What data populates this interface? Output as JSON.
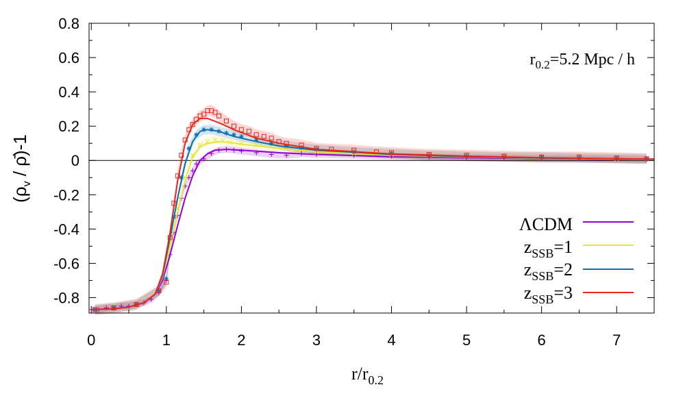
{
  "chart_data": {
    "type": "line",
    "xlabel": {
      "main": "r/r",
      "sub": "0.2"
    },
    "ylabel": {
      "pre": "(ρ",
      "sub": "v",
      "mid": " / ",
      "rhobar": "ρ̄",
      "post": ")-1"
    },
    "annotation": {
      "pre": "r",
      "sub": "0.2",
      "post": "=5.2 Mpc / h"
    },
    "xlim": [
      -0.03,
      7.5
    ],
    "ylim": [
      -0.89,
      0.8
    ],
    "x_ticks": [
      0,
      1,
      2,
      3,
      4,
      5,
      6,
      7
    ],
    "y_ticks": [
      0.8,
      0.6,
      0.4,
      0.2,
      0,
      -0.2,
      -0.4,
      -0.6,
      -0.8
    ],
    "zero_line": true,
    "legend_position": "bottom-right",
    "series": [
      {
        "name": "ΛCDM",
        "legend_label": {
          "main": "ΛCDM",
          "sub": "",
          "post": ""
        },
        "color": "#9400d3",
        "marker": "plus",
        "peak": {
          "r": 1.8,
          "value": 0.07
        },
        "curve": [
          [
            0,
            -0.87
          ],
          [
            0.3,
            -0.865
          ],
          [
            0.5,
            -0.855
          ],
          [
            0.7,
            -0.83
          ],
          [
            0.85,
            -0.78
          ],
          [
            0.95,
            -0.7
          ],
          [
            1.05,
            -0.55
          ],
          [
            1.15,
            -0.38
          ],
          [
            1.25,
            -0.22
          ],
          [
            1.35,
            -0.09
          ],
          [
            1.45,
            0
          ],
          [
            1.55,
            0.04
          ],
          [
            1.65,
            0.06
          ],
          [
            1.8,
            0.065
          ],
          [
            2.0,
            0.06
          ],
          [
            2.5,
            0.045
          ],
          [
            3.0,
            0.035
          ],
          [
            4.0,
            0.022
          ],
          [
            5.0,
            0.015
          ],
          [
            6.0,
            0.01
          ],
          [
            7.0,
            0.006
          ],
          [
            7.5,
            0.005
          ]
        ],
        "points": [
          [
            0,
            -0.87
          ],
          [
            0.1,
            -0.87
          ],
          [
            0.2,
            -0.86
          ],
          [
            0.3,
            -0.86
          ],
          [
            0.4,
            -0.85
          ],
          [
            0.5,
            -0.85
          ],
          [
            0.6,
            -0.84
          ],
          [
            0.7,
            -0.83
          ],
          [
            0.8,
            -0.81
          ],
          [
            0.9,
            -0.77
          ],
          [
            1.0,
            -0.7
          ],
          [
            1.05,
            -0.55
          ],
          [
            1.1,
            -0.42
          ],
          [
            1.15,
            -0.32
          ],
          [
            1.2,
            -0.22
          ],
          [
            1.25,
            -0.15
          ],
          [
            1.3,
            -0.1
          ],
          [
            1.35,
            -0.06
          ],
          [
            1.4,
            -0.02
          ],
          [
            1.5,
            0.01
          ],
          [
            1.6,
            0.04
          ],
          [
            1.7,
            0.06
          ],
          [
            1.8,
            0.065
          ],
          [
            1.9,
            0.06
          ],
          [
            2.0,
            0.055
          ],
          [
            2.2,
            0.045
          ],
          [
            2.4,
            0.035
          ],
          [
            2.6,
            0.03
          ],
          [
            2.8,
            0.04
          ],
          [
            3.0,
            0.035
          ],
          [
            3.5,
            0.03
          ],
          [
            4.0,
            0.025
          ],
          [
            4.5,
            0.02
          ],
          [
            5.0,
            0.015
          ],
          [
            5.5,
            0.015
          ],
          [
            6.0,
            0.01
          ],
          [
            6.5,
            0.01
          ],
          [
            7.0,
            0.008
          ],
          [
            7.4,
            0.005
          ]
        ]
      },
      {
        "name": "zSSB=1",
        "legend_label": {
          "main": "z",
          "sub": "SSB",
          "post": "=1"
        },
        "color": "#e6e63c",
        "marker": "x",
        "peak": {
          "r": 1.7,
          "value": 0.11
        },
        "curve": [
          [
            0,
            -0.87
          ],
          [
            0.3,
            -0.865
          ],
          [
            0.5,
            -0.855
          ],
          [
            0.7,
            -0.83
          ],
          [
            0.85,
            -0.78
          ],
          [
            0.95,
            -0.68
          ],
          [
            1.05,
            -0.5
          ],
          [
            1.15,
            -0.3
          ],
          [
            1.25,
            -0.12
          ],
          [
            1.35,
            0.02
          ],
          [
            1.45,
            0.08
          ],
          [
            1.55,
            0.1
          ],
          [
            1.7,
            0.11
          ],
          [
            1.85,
            0.105
          ],
          [
            2.0,
            0.095
          ],
          [
            2.5,
            0.07
          ],
          [
            3.0,
            0.05
          ],
          [
            4.0,
            0.03
          ],
          [
            5.0,
            0.02
          ],
          [
            6.0,
            0.012
          ],
          [
            7.0,
            0.008
          ],
          [
            7.5,
            0.006
          ]
        ],
        "points": [
          [
            0.05,
            -0.87
          ],
          [
            0.3,
            -0.86
          ],
          [
            0.6,
            -0.84
          ],
          [
            0.9,
            -0.76
          ],
          [
            1.05,
            -0.48
          ],
          [
            1.15,
            -0.28
          ],
          [
            1.25,
            -0.1
          ],
          [
            1.35,
            0.03
          ],
          [
            1.45,
            0.09
          ],
          [
            1.55,
            0.11
          ],
          [
            1.65,
            0.12
          ],
          [
            1.75,
            0.115
          ],
          [
            1.85,
            0.105
          ],
          [
            2.0,
            0.1
          ],
          [
            2.2,
            0.09
          ],
          [
            2.4,
            0.08
          ],
          [
            2.6,
            0.07
          ],
          [
            2.8,
            0.06
          ],
          [
            3.0,
            0.05
          ],
          [
            3.5,
            0.04
          ],
          [
            4.0,
            0.035
          ],
          [
            4.5,
            0.03
          ],
          [
            5.0,
            0.025
          ],
          [
            5.5,
            0.02
          ],
          [
            6.0,
            0.015
          ],
          [
            6.5,
            0.015
          ],
          [
            7.0,
            0.01
          ],
          [
            7.4,
            0.01
          ]
        ]
      },
      {
        "name": "zSSB=2",
        "legend_label": {
          "main": "z",
          "sub": "SSB",
          "post": "=2"
        },
        "color": "#0a6eaa",
        "marker": "star",
        "peak": {
          "r": 1.55,
          "value": 0.18
        },
        "curve": [
          [
            0,
            -0.87
          ],
          [
            0.3,
            -0.865
          ],
          [
            0.5,
            -0.855
          ],
          [
            0.7,
            -0.83
          ],
          [
            0.85,
            -0.78
          ],
          [
            0.95,
            -0.67
          ],
          [
            1.05,
            -0.45
          ],
          [
            1.15,
            -0.22
          ],
          [
            1.25,
            -0.02
          ],
          [
            1.35,
            0.11
          ],
          [
            1.45,
            0.17
          ],
          [
            1.55,
            0.18
          ],
          [
            1.7,
            0.17
          ],
          [
            1.9,
            0.14
          ],
          [
            2.2,
            0.11
          ],
          [
            2.5,
            0.085
          ],
          [
            3.0,
            0.06
          ],
          [
            4.0,
            0.035
          ],
          [
            5.0,
            0.022
          ],
          [
            6.0,
            0.014
          ],
          [
            7.0,
            0.01
          ],
          [
            7.5,
            0.008
          ]
        ],
        "points": [
          [
            0.05,
            -0.87
          ],
          [
            0.3,
            -0.86
          ],
          [
            0.6,
            -0.84
          ],
          [
            0.9,
            -0.76
          ],
          [
            1.0,
            -0.69
          ],
          [
            1.1,
            -0.33
          ],
          [
            1.2,
            -0.1
          ],
          [
            1.3,
            0.07
          ],
          [
            1.4,
            0.15
          ],
          [
            1.5,
            0.18
          ],
          [
            1.6,
            0.18
          ],
          [
            1.7,
            0.17
          ],
          [
            1.8,
            0.16
          ],
          [
            1.9,
            0.15
          ],
          [
            2.0,
            0.14
          ],
          [
            2.2,
            0.12
          ],
          [
            2.4,
            0.1
          ],
          [
            2.6,
            0.085
          ],
          [
            2.8,
            0.075
          ],
          [
            3.0,
            0.065
          ],
          [
            3.5,
            0.05
          ],
          [
            4.0,
            0.04
          ],
          [
            4.5,
            0.03
          ],
          [
            5.0,
            0.025
          ],
          [
            5.5,
            0.02
          ],
          [
            6.0,
            0.02
          ],
          [
            6.5,
            0.015
          ],
          [
            7.0,
            0.012
          ],
          [
            7.4,
            0.01
          ]
        ]
      },
      {
        "name": "zSSB=3",
        "legend_label": {
          "main": "z",
          "sub": "SSB",
          "post": "=3"
        },
        "color": "#e8261e",
        "marker": "square",
        "peak": {
          "r": 1.5,
          "value": 0.25
        },
        "curve": [
          [
            0,
            -0.87
          ],
          [
            0.3,
            -0.865
          ],
          [
            0.5,
            -0.855
          ],
          [
            0.7,
            -0.83
          ],
          [
            0.85,
            -0.78
          ],
          [
            0.95,
            -0.66
          ],
          [
            1.05,
            -0.42
          ],
          [
            1.15,
            -0.12
          ],
          [
            1.25,
            0.1
          ],
          [
            1.35,
            0.21
          ],
          [
            1.45,
            0.245
          ],
          [
            1.55,
            0.245
          ],
          [
            1.7,
            0.22
          ],
          [
            1.9,
            0.18
          ],
          [
            2.2,
            0.13
          ],
          [
            2.5,
            0.1
          ],
          [
            3.0,
            0.065
          ],
          [
            4.0,
            0.038
          ],
          [
            5.0,
            0.025
          ],
          [
            6.0,
            0.016
          ],
          [
            7.0,
            0.01
          ],
          [
            7.5,
            0.008
          ]
        ],
        "points": [
          [
            0.05,
            -0.87
          ],
          [
            0.3,
            -0.86
          ],
          [
            0.6,
            -0.84
          ],
          [
            0.9,
            -0.76
          ],
          [
            1.0,
            -0.71
          ],
          [
            1.05,
            -0.45
          ],
          [
            1.1,
            -0.25
          ],
          [
            1.15,
            -0.09
          ],
          [
            1.2,
            0.03
          ],
          [
            1.25,
            0.12
          ],
          [
            1.3,
            0.18
          ],
          [
            1.35,
            0.21
          ],
          [
            1.4,
            0.24
          ],
          [
            1.45,
            0.26
          ],
          [
            1.5,
            0.27
          ],
          [
            1.55,
            0.29
          ],
          [
            1.6,
            0.29
          ],
          [
            1.65,
            0.28
          ],
          [
            1.7,
            0.26
          ],
          [
            1.8,
            0.23
          ],
          [
            1.9,
            0.2
          ],
          [
            2.0,
            0.18
          ],
          [
            2.1,
            0.17
          ],
          [
            2.2,
            0.15
          ],
          [
            2.3,
            0.14
          ],
          [
            2.4,
            0.13
          ],
          [
            2.5,
            0.11
          ],
          [
            2.6,
            0.1
          ],
          [
            2.8,
            0.09
          ],
          [
            3.0,
            0.07
          ],
          [
            3.2,
            0.065
          ],
          [
            3.5,
            0.06
          ],
          [
            3.8,
            0.05
          ],
          [
            4.0,
            0.045
          ],
          [
            4.5,
            0.035
          ],
          [
            5.0,
            0.03
          ],
          [
            5.5,
            0.025
          ],
          [
            6.0,
            0.02
          ],
          [
            6.5,
            0.02
          ],
          [
            7.0,
            0.015
          ],
          [
            7.4,
            0.01
          ]
        ]
      }
    ]
  }
}
